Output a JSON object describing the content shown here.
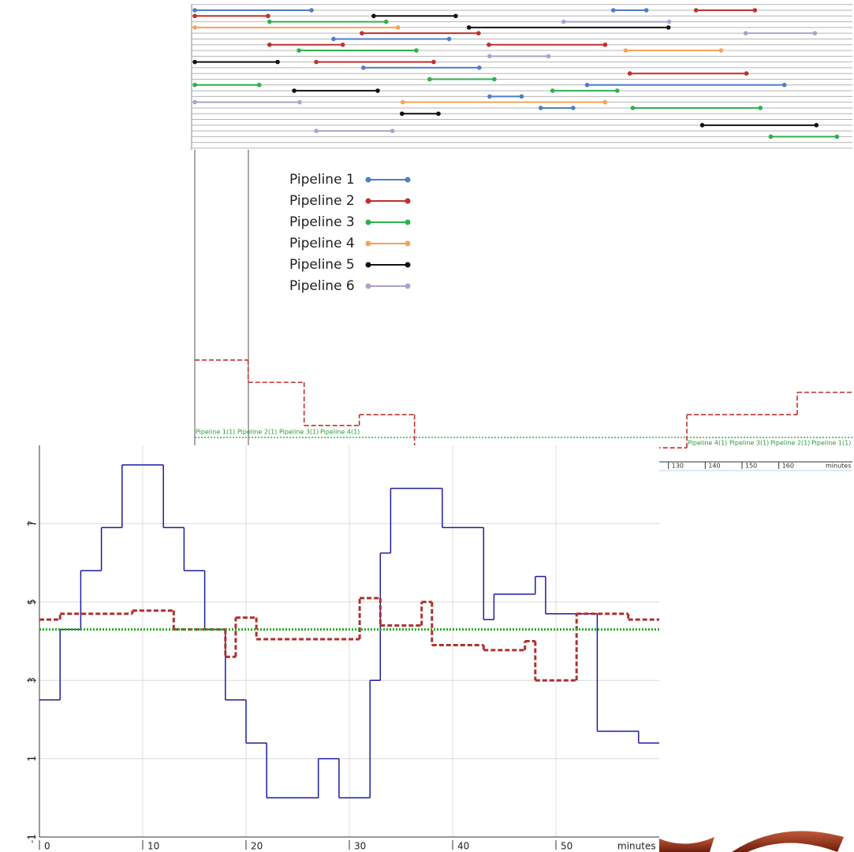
{
  "chart_data": [
    {
      "type": "gantt",
      "xlim": [
        0,
        180
      ],
      "ylim": [
        -1,
        24
      ],
      "series": [
        {
          "name": "Pipeline 1",
          "color": "#4e7ec8",
          "segments": [
            {
              "row": 0,
              "start": 1.3,
              "end": 33.0
            },
            {
              "row": 0,
              "start": 115.0,
              "end": 124.0
            },
            {
              "row": 5,
              "start": 39.0,
              "end": 70.4
            },
            {
              "row": 10,
              "start": 47.1,
              "end": 78.6
            },
            {
              "row": 13,
              "start": 107.9,
              "end": 161.5
            },
            {
              "row": 15,
              "start": 81.4,
              "end": 90.1
            },
            {
              "row": 17,
              "start": 95.3,
              "end": 104.1
            }
          ]
        },
        {
          "name": "Pipeline 2",
          "color": "#c0302e",
          "segments": [
            {
              "row": 1,
              "start": 1.3,
              "end": 21.2
            },
            {
              "row": 0,
              "start": 137.5,
              "end": 153.5
            },
            {
              "row": 4,
              "start": 46.7,
              "end": 78.4
            },
            {
              "row": 6,
              "start": 21.6,
              "end": 41.5
            },
            {
              "row": 6,
              "start": 81.2,
              "end": 112.8
            },
            {
              "row": 9,
              "start": 34.3,
              "end": 66.2
            },
            {
              "row": 11,
              "start": 119.5,
              "end": 151.2
            }
          ]
        },
        {
          "name": "Pipeline 3",
          "color": "#2db14b",
          "segments": [
            {
              "row": 2,
              "start": 21.6,
              "end": 53.3
            },
            {
              "row": 7,
              "start": 29.6,
              "end": 61.5
            },
            {
              "row": 12,
              "start": 65.1,
              "end": 82.7
            },
            {
              "row": 13,
              "start": 1.3,
              "end": 18.8
            },
            {
              "row": 14,
              "start": 98.5,
              "end": 116.1
            },
            {
              "row": 17,
              "start": 120.3,
              "end": 155.0
            },
            {
              "row": 22,
              "start": 157.8,
              "end": 175.8
            }
          ]
        },
        {
          "name": "Pipeline 4",
          "color": "#f4a35a",
          "segments": [
            {
              "row": 3,
              "start": 1.3,
              "end": 56.5
            },
            {
              "row": 7,
              "start": 118.4,
              "end": 144.3
            },
            {
              "row": 16,
              "start": 57.8,
              "end": 112.8
            }
          ]
        },
        {
          "name": "Pipeline 5",
          "color": "#111111",
          "segments": [
            {
              "row": 1,
              "start": 49.9,
              "end": 72.2
            },
            {
              "row": 3,
              "start": 75.8,
              "end": 130.0
            },
            {
              "row": 9,
              "start": 1.3,
              "end": 23.8
            },
            {
              "row": 14,
              "start": 28.3,
              "end": 51.0
            },
            {
              "row": 18,
              "start": 57.6,
              "end": 67.5
            },
            {
              "row": 20,
              "start": 139.2,
              "end": 170.2
            }
          ]
        },
        {
          "name": "Pipeline 6",
          "color": "#b0a0cc",
          "segments": [
            {
              "row": 2,
              "start": 101.5,
              "end": 130.2
            },
            {
              "row": 4,
              "start": 151.0,
              "end": 169.8
            },
            {
              "row": 8,
              "start": 81.4,
              "end": 97.4
            },
            {
              "row": 16,
              "start": 1.3,
              "end": 29.8
            },
            {
              "row": 21,
              "start": 34.3,
              "end": 55.0
            }
          ]
        }
      ]
    },
    {
      "type": "step",
      "xlim": [
        0,
        180
      ],
      "ylim": [
        0,
        7.5
      ],
      "xticks": [
        130,
        140,
        150,
        160
      ],
      "xlabel": "minutes",
      "annotations": [
        "Pipeline 1(1)",
        "Pipeline 2(1)",
        "Pipeline 3(1)",
        "Pipeline 4(1)",
        "Pipeline 4(1)",
        "Pipeline 3(1)",
        "Pipeline 2(1)",
        "Pipeline 1(1)"
      ],
      "series": [
        {
          "color": "#c0302e",
          "line_style": "dashed",
          "x": [
            1.3,
            15.8,
            31,
            46,
            61,
            135,
            165
          ],
          "values": [
            2.46,
            1.92,
            0.88,
            1.14,
            0.34,
            1.14,
            1.68
          ]
        },
        {
          "color": "#2db14b",
          "line_style": "dotted",
          "x": [
            1.3
          ],
          "values": [
            0.59
          ]
        }
      ]
    },
    {
      "type": "step",
      "xlim": [
        0,
        60
      ],
      "ylim": [
        -1,
        9
      ],
      "xticks": [
        0,
        10,
        20,
        30,
        40,
        50
      ],
      "yticks": [
        -1,
        1,
        3,
        5,
        7
      ],
      "xlabel": "minutes",
      "grid": true,
      "series": [
        {
          "color": "#1c1ca0",
          "line_style": "solid",
          "x": [
            0,
            2,
            4,
            6,
            8,
            12,
            14,
            16,
            18,
            20,
            22,
            27,
            29,
            32,
            33,
            34,
            39,
            43,
            44,
            48,
            49,
            54,
            58
          ],
          "values": [
            2.5,
            4.3,
            5.8,
            6.9,
            8.5,
            6.9,
            5.8,
            4.3,
            2.5,
            1.4,
            0,
            1.0,
            0,
            3.0,
            6.25,
            7.9,
            6.9,
            4.55,
            5.2,
            5.65,
            4.7,
            1.7,
            1.4
          ]
        },
        {
          "color": "#b03030",
          "line_style": "dashed",
          "x": [
            0,
            2,
            9,
            13,
            18,
            19,
            21,
            31,
            33,
            37,
            38,
            43,
            47,
            48,
            52,
            57
          ],
          "values": [
            4.55,
            4.7,
            4.78,
            4.3,
            3.6,
            4.6,
            4.05,
            5.1,
            4.4,
            5.0,
            3.9,
            3.77,
            4.0,
            3.0,
            4.7,
            4.55
          ]
        },
        {
          "color": "#22aa22",
          "line_style": "dotted",
          "x": [
            0
          ],
          "values": [
            4.3
          ]
        }
      ]
    }
  ]
}
